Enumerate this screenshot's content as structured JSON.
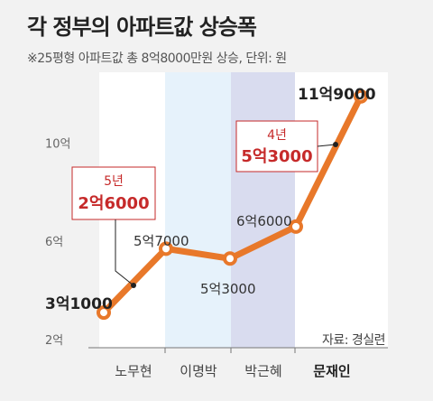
{
  "header": {
    "title": "각 정부의 아파트값 상승폭",
    "subtitle": "※25평형 아파트값 총 8억8000만원 상승, 단위: 원"
  },
  "source": "자료: 경실련",
  "colors": {
    "line": "#e8782a",
    "band_1": "#ffffff",
    "band_2": "#e6f2fb",
    "band_3": "#d9dcef",
    "annotation": "#c62a2a"
  },
  "chart_data": {
    "type": "line",
    "title": "각 정부의 아파트값 상승폭",
    "xlabel": "",
    "ylabel": "",
    "ylim": [
      2,
      12
    ],
    "yticks": [
      {
        "value": 2,
        "label": "2억"
      },
      {
        "value": 6,
        "label": "6억"
      },
      {
        "value": 10,
        "label": "10억"
      }
    ],
    "categories": [
      "노무현",
      "이명박",
      "박근혜",
      "문재인"
    ],
    "points": [
      {
        "value": 3.1,
        "label": "3억1000"
      },
      {
        "value": 5.7,
        "label": "5억7000"
      },
      {
        "value": 5.3,
        "label": "5억3000"
      },
      {
        "value": 6.6,
        "label": "6억6000"
      },
      {
        "value": 11.9,
        "label": "11억9000"
      }
    ],
    "annotations": [
      {
        "period": "5년",
        "amount": "2억6000"
      },
      {
        "period": "4년",
        "amount": "5억3000"
      }
    ],
    "grid": false
  }
}
